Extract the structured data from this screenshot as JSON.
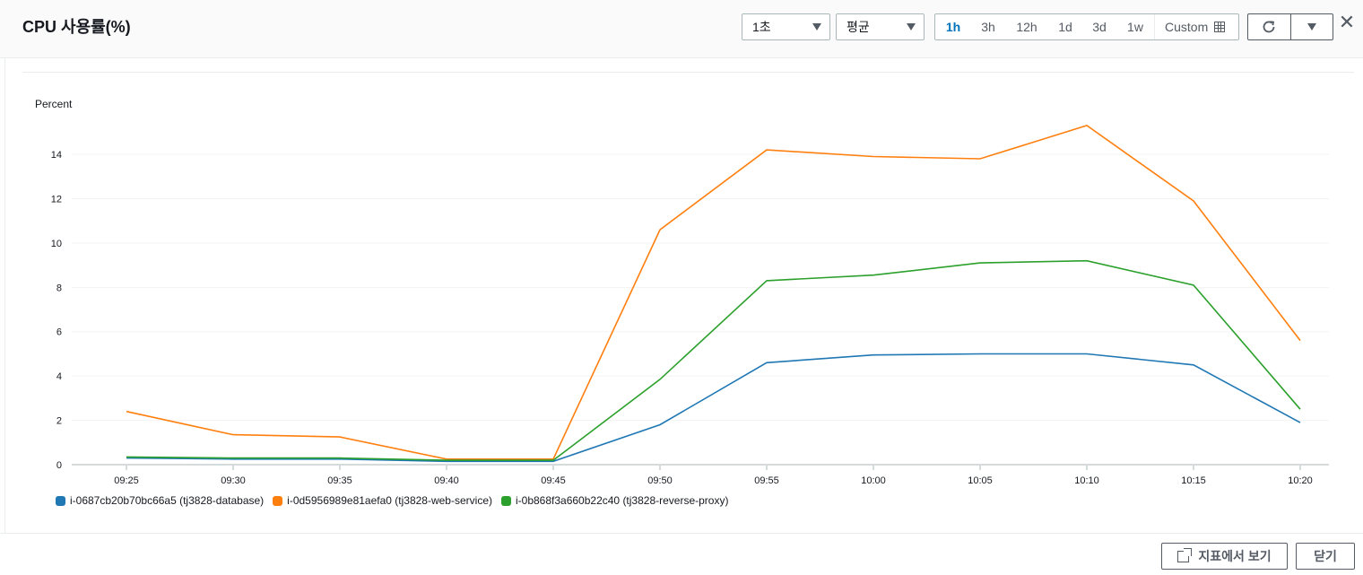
{
  "header": {
    "title": "CPU 사용률(%)",
    "period_select": "1초",
    "statistic_select": "평균",
    "time_ranges": [
      "1h",
      "3h",
      "12h",
      "1d",
      "3d",
      "1w"
    ],
    "active_range": "1h",
    "custom_label": "Custom"
  },
  "footer": {
    "view_in_metrics_label": "지표에서 보기",
    "close_label": "닫기"
  },
  "colors": {
    "accent": "#0073bb",
    "database": "#1f77b4",
    "web_service": "#ff7f0e",
    "reverse_proxy": "#2ca02c"
  },
  "chart_data": {
    "type": "line",
    "title": "",
    "ylabel": "Percent",
    "xlabel": "",
    "x": [
      "09:25",
      "09:30",
      "09:35",
      "09:40",
      "09:45",
      "09:50",
      "09:55",
      "10:00",
      "10:05",
      "10:10",
      "10:15",
      "10:20"
    ],
    "ylim": [
      0,
      15.5
    ],
    "yticks": [
      0,
      2,
      4,
      6,
      8,
      10,
      12,
      14
    ],
    "grid": true,
    "legend": "bottom-left",
    "series": [
      {
        "name": "i-0687cb20b70bc66a5 (tj3828-database)",
        "color": "#1f77b4",
        "values": [
          0.3,
          0.25,
          0.25,
          0.15,
          0.15,
          1.8,
          4.6,
          4.95,
          5.0,
          5.0,
          4.5,
          1.9
        ]
      },
      {
        "name": "i-0d5956989e81aefa0 (tj3828-web-service)",
        "color": "#ff7f0e",
        "values": [
          2.4,
          1.35,
          1.25,
          0.25,
          0.25,
          10.6,
          14.2,
          13.9,
          13.8,
          15.3,
          11.9,
          5.6
        ]
      },
      {
        "name": "i-0b868f3a660b22c40 (tj3828-reverse-proxy)",
        "color": "#2ca02c",
        "values": [
          0.35,
          0.3,
          0.3,
          0.2,
          0.2,
          3.85,
          8.3,
          8.55,
          9.1,
          9.2,
          8.1,
          2.5
        ]
      }
    ]
  }
}
